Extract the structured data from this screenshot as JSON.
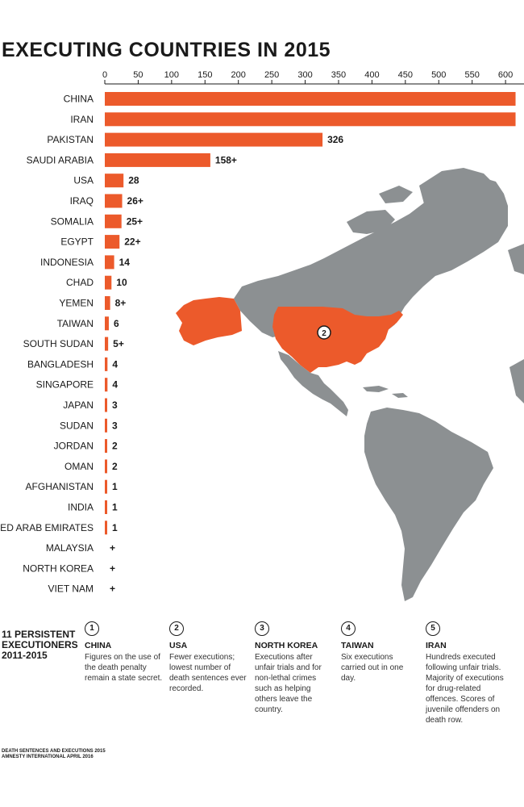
{
  "title": "EXECUTING COUNTRIES IN 2015",
  "accent_color": "#ec5a2b",
  "map_gray": "#8c9092",
  "map_marker": "2",
  "chart_data": {
    "type": "bar",
    "orientation": "horizontal",
    "title": "EXECUTING COUNTRIES IN 2015",
    "xlim": [
      0,
      610
    ],
    "ticks": [
      0,
      50,
      100,
      150,
      200,
      250,
      300,
      350,
      400,
      450,
      500,
      550,
      600
    ],
    "categories": [
      "CHINA",
      "IRAN",
      "PAKISTAN",
      "SAUDI ARABIA",
      "USA",
      "IRAQ",
      "SOMALIA",
      "EGYPT",
      "INDONESIA",
      "CHAD",
      "YEMEN",
      "TAIWAN",
      "SOUTH SUDAN",
      "BANGLADESH",
      "SINGAPORE",
      "JAPAN",
      "SUDAN",
      "JORDAN",
      "OMAN",
      "AFGHANISTAN",
      "INDIA",
      "UNITED ARAB EMIRATES",
      "MALAYSIA",
      "NORTH KOREA",
      "VIET NAM"
    ],
    "values": [
      615,
      615,
      326,
      158,
      28,
      26,
      25,
      22,
      14,
      10,
      8,
      6,
      5,
      4,
      4,
      3,
      3,
      2,
      2,
      1,
      1,
      1,
      0,
      0,
      0
    ],
    "labels": [
      "",
      "",
      "326",
      "158+",
      "28",
      "26+",
      "25+",
      "22+",
      "14",
      "10",
      "8+",
      "6",
      "5+",
      "4",
      "4",
      "3",
      "3",
      "2",
      "2",
      "1",
      "1",
      "1",
      "+",
      "+",
      "+"
    ]
  },
  "persistent": {
    "title": "11 PERSISTENT EXECUTIONERS 2011-2015",
    "items": [
      {
        "num": "1",
        "name": "CHINA",
        "desc": "Figures on the use of the death penalty remain a state secret."
      },
      {
        "num": "2",
        "name": "USA",
        "desc": "Fewer executions; lowest number of death sentences ever recorded."
      },
      {
        "num": "3",
        "name": "NORTH KOREA",
        "desc": "Executions after unfair trials and for non-lethal crimes such as helping others leave the country."
      },
      {
        "num": "4",
        "name": "TAIWAN",
        "desc": "Six executions carried out in one day."
      },
      {
        "num": "5",
        "name": "IRAN",
        "desc": "Hundreds executed following unfair trials. Majority of executions for drug-related offences. Scores of juvenile offenders on death row."
      }
    ]
  },
  "footer": {
    "line1": "DEATH SENTENCES AND EXECUTIONS 2015",
    "line2": "AMNESTY INTERNATIONAL APRIL 2016"
  }
}
